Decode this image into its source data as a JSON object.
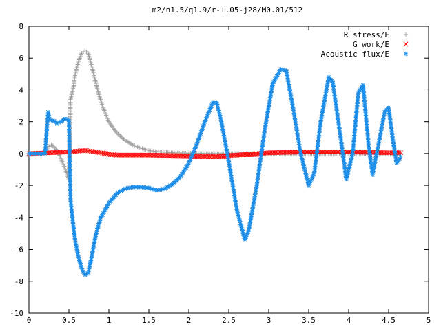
{
  "chart_data": {
    "type": "scatter",
    "title": "m2/n1.5/q1.9/r-+.05-j28/M0.01/512",
    "xlabel": "",
    "ylabel": "",
    "xlim": [
      0,
      5
    ],
    "ylim": [
      -10,
      8
    ],
    "xticks": [
      0,
      0.5,
      1,
      1.5,
      2,
      2.5,
      3,
      3.5,
      4,
      4.5,
      5
    ],
    "xtick_labels": [
      "0",
      "0.5",
      "1",
      "1.5",
      "2",
      "2.5",
      "3",
      "3.5",
      "4",
      "4.5",
      "5"
    ],
    "yticks": [
      -10,
      -8,
      -6,
      -4,
      -2,
      0,
      2,
      4,
      6,
      8
    ],
    "ytick_labels": [
      "-10",
      "-8",
      "-6",
      "-4",
      "-2",
      "0",
      "2",
      "4",
      "6",
      "8"
    ],
    "grid": false,
    "legend_position": "top-right",
    "series": [
      {
        "name": "R stress/E",
        "marker": "plus",
        "color": "#a0a0a0",
        "points": [
          [
            0.0,
            0.0
          ],
          [
            0.1,
            0.0
          ],
          [
            0.2,
            0.05
          ],
          [
            0.25,
            0.45
          ],
          [
            0.28,
            0.55
          ],
          [
            0.3,
            0.5
          ],
          [
            0.35,
            0.2
          ],
          [
            0.4,
            -0.3
          ],
          [
            0.45,
            -0.9
          ],
          [
            0.5,
            -1.6
          ],
          [
            0.52,
            3.4
          ],
          [
            0.55,
            4.0
          ],
          [
            0.58,
            5.0
          ],
          [
            0.62,
            5.8
          ],
          [
            0.66,
            6.3
          ],
          [
            0.7,
            6.5
          ],
          [
            0.74,
            6.3
          ],
          [
            0.78,
            5.6
          ],
          [
            0.82,
            4.8
          ],
          [
            0.86,
            4.0
          ],
          [
            0.9,
            3.3
          ],
          [
            0.95,
            2.6
          ],
          [
            1.0,
            2.0
          ],
          [
            1.1,
            1.3
          ],
          [
            1.2,
            0.85
          ],
          [
            1.3,
            0.55
          ],
          [
            1.4,
            0.35
          ],
          [
            1.5,
            0.2
          ],
          [
            1.6,
            0.12
          ],
          [
            1.8,
            0.05
          ],
          [
            2.0,
            0.02
          ],
          [
            2.3,
            0.0
          ],
          [
            2.7,
            0.0
          ],
          [
            3.0,
            0.0
          ],
          [
            3.5,
            0.0
          ],
          [
            4.0,
            0.0
          ],
          [
            4.5,
            0.0
          ],
          [
            4.65,
            0.0
          ]
        ]
      },
      {
        "name": "G work/E",
        "marker": "cross",
        "color": "#ff0000",
        "points": [
          [
            0.0,
            0.0
          ],
          [
            0.25,
            0.05
          ],
          [
            0.5,
            0.1
          ],
          [
            0.7,
            0.2
          ],
          [
            0.9,
            0.05
          ],
          [
            1.1,
            -0.1
          ],
          [
            1.5,
            -0.1
          ],
          [
            2.0,
            -0.15
          ],
          [
            2.3,
            -0.2
          ],
          [
            2.6,
            -0.1
          ],
          [
            3.0,
            0.05
          ],
          [
            3.5,
            0.1
          ],
          [
            4.0,
            0.1
          ],
          [
            4.5,
            0.05
          ],
          [
            4.65,
            0.05
          ]
        ]
      },
      {
        "name": "Acoustic flux/E",
        "marker": "star",
        "color": "#1e8ee8",
        "points": [
          [
            0.0,
            0.0
          ],
          [
            0.2,
            0.0
          ],
          [
            0.24,
            2.6
          ],
          [
            0.26,
            2.1
          ],
          [
            0.3,
            2.1
          ],
          [
            0.35,
            1.9
          ],
          [
            0.4,
            2.0
          ],
          [
            0.45,
            2.2
          ],
          [
            0.5,
            2.1
          ],
          [
            0.52,
            -2.9
          ],
          [
            0.55,
            -4.3
          ],
          [
            0.58,
            -5.5
          ],
          [
            0.62,
            -6.5
          ],
          [
            0.66,
            -7.2
          ],
          [
            0.7,
            -7.6
          ],
          [
            0.74,
            -7.5
          ],
          [
            0.78,
            -6.6
          ],
          [
            0.84,
            -5.0
          ],
          [
            0.9,
            -4.0
          ],
          [
            1.0,
            -3.1
          ],
          [
            1.1,
            -2.5
          ],
          [
            1.2,
            -2.2
          ],
          [
            1.3,
            -2.1
          ],
          [
            1.4,
            -2.1
          ],
          [
            1.5,
            -2.15
          ],
          [
            1.6,
            -2.3
          ],
          [
            1.7,
            -2.2
          ],
          [
            1.8,
            -1.9
          ],
          [
            1.9,
            -1.4
          ],
          [
            2.0,
            -0.6
          ],
          [
            2.1,
            0.6
          ],
          [
            2.2,
            2.0
          ],
          [
            2.3,
            3.2
          ],
          [
            2.35,
            3.2
          ],
          [
            2.4,
            2.2
          ],
          [
            2.5,
            -0.5
          ],
          [
            2.6,
            -3.5
          ],
          [
            2.7,
            -5.4
          ],
          [
            2.75,
            -4.8
          ],
          [
            2.85,
            -2.0
          ],
          [
            2.95,
            1.5
          ],
          [
            3.05,
            4.4
          ],
          [
            3.15,
            5.3
          ],
          [
            3.22,
            5.2
          ],
          [
            3.3,
            3.0
          ],
          [
            3.4,
            0.0
          ],
          [
            3.5,
            -2.0
          ],
          [
            3.57,
            -1.2
          ],
          [
            3.65,
            2.0
          ],
          [
            3.75,
            4.8
          ],
          [
            3.8,
            4.5
          ],
          [
            3.9,
            1.0
          ],
          [
            3.97,
            -1.6
          ],
          [
            4.05,
            0.0
          ],
          [
            4.12,
            3.8
          ],
          [
            4.18,
            4.3
          ],
          [
            4.25,
            0.5
          ],
          [
            4.3,
            -1.3
          ],
          [
            4.37,
            0.5
          ],
          [
            4.45,
            2.6
          ],
          [
            4.5,
            2.9
          ],
          [
            4.55,
            1.0
          ],
          [
            4.6,
            -0.6
          ],
          [
            4.65,
            -0.2
          ]
        ]
      }
    ]
  }
}
